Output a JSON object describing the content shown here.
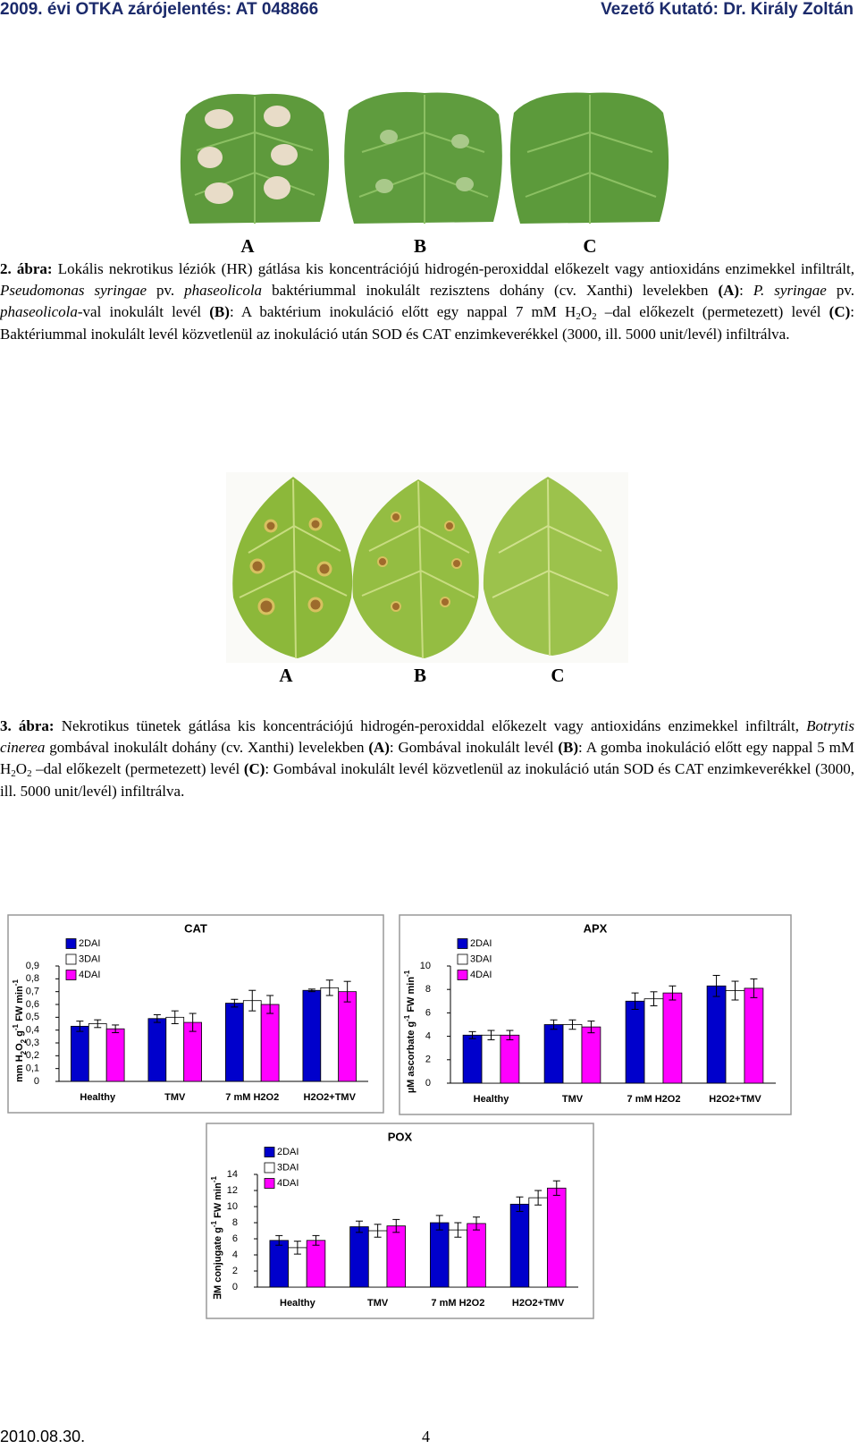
{
  "header": {
    "left": "2009. évi OTKA zárójelentés: AT 048866",
    "right": "Vezető Kutató: Dr. Király Zoltán"
  },
  "figure2": {
    "panels": [
      "A",
      "B",
      "C"
    ],
    "caption": [
      "2. ábra:",
      " Lokális nekrotikus léziók (HR) gátlása kis koncentrációjú hidrogén-peroxiddal előkezelt vagy antioxidáns enzimekkel infiltrált, ",
      "Pseudomonas syringae",
      " pv. ",
      "phaseolicola",
      " baktériummal inokulált rezisztens dohány (cv. Xanthi) levelekben ",
      "(A)",
      ": ",
      "P. syringae",
      " pv. ",
      "phaseolicola",
      "-val inokulált levél ",
      "(B)",
      ": A baktérium inokuláció előtt egy nappal 7 mM H",
      "2",
      "O",
      "2",
      " –dal előkezelt (permetezett) levél ",
      "(C)",
      ": Baktériummal inokulált levél közvetlenül az inokuláció után SOD és CAT enzimkeverékkel (3000, ill. 5000 unit/levél) infiltrálva."
    ]
  },
  "figure3": {
    "panels": [
      "A",
      "B",
      "C"
    ],
    "caption": [
      "3. ábra:",
      " Nekrotikus tünetek gátlása kis koncentrációjú hidrogén-peroxiddal előkezelt vagy antioxidáns enzimekkel infiltrált, ",
      "Botrytis cinerea",
      " gombával inokulált dohány (cv. Xanthi) levelekben ",
      "(A)",
      ": Gombával inokulált levél ",
      "(B)",
      ": A gomba inokuláció előtt egy nappal 5 mM H",
      "2",
      "O",
      "2",
      " –dal előkezelt (permetezett) levél ",
      "(C)",
      ": Gombával inokulált levél közvetlenül az inokuláció után SOD és CAT enzimkeverékkel (3000, ill. 5000 unit/levél) infiltrálva."
    ]
  },
  "chart_data": [
    {
      "type": "bar",
      "title": "CAT",
      "ylabel": [
        "mm H",
        "2",
        "O",
        "2",
        " g",
        "-1",
        " FW min",
        "-1"
      ],
      "categories": [
        "Healthy",
        "TMV",
        "7 mM H2O2",
        "H2O2+TMV"
      ],
      "series": [
        {
          "name": "2DAI",
          "color": "#0000cc",
          "values": [
            0.43,
            0.49,
            0.61,
            0.71
          ],
          "errors": [
            0.04,
            0.03,
            0.03,
            0.01
          ]
        },
        {
          "name": "3DAI",
          "color": "#ffffff",
          "values": [
            0.45,
            0.5,
            0.63,
            0.73
          ],
          "errors": [
            0.03,
            0.05,
            0.08,
            0.06
          ]
        },
        {
          "name": "4DAI",
          "color": "#ff00ff",
          "values": [
            0.41,
            0.46,
            0.6,
            0.7
          ],
          "errors": [
            0.03,
            0.07,
            0.07,
            0.08
          ]
        }
      ],
      "ylim": [
        0,
        0.9
      ],
      "yticks": [
        0,
        {
          "value": 0.1,
          "label": "0,1"
        },
        {
          "value": 0.2,
          "label": "0,2"
        },
        {
          "value": 0.3,
          "label": "0,3"
        },
        {
          "value": 0.4,
          "label": "0,4"
        },
        {
          "value": 0.5,
          "label": "0,5"
        },
        {
          "value": 0.6,
          "label": "0,6"
        },
        {
          "value": 0.7,
          "label": "0,7"
        },
        {
          "value": 0.8,
          "label": "0,8"
        },
        {
          "value": 0.9,
          "label": "0,9"
        }
      ]
    },
    {
      "type": "bar",
      "title": "APX",
      "ylabel": [
        "µM ascorbate g",
        "-1",
        " FW min",
        "-1"
      ],
      "categories": [
        "Healthy",
        "TMV",
        "7 mM H2O2",
        "H2O2+TMV"
      ],
      "series": [
        {
          "name": "2DAI",
          "color": "#0000cc",
          "values": [
            4.1,
            5.0,
            7.0,
            8.3
          ],
          "errors": [
            0.3,
            0.4,
            0.7,
            0.9
          ]
        },
        {
          "name": "3DAI",
          "color": "#ffffff",
          "values": [
            4.1,
            5.0,
            7.2,
            7.9
          ],
          "errors": [
            0.4,
            0.4,
            0.6,
            0.8
          ]
        },
        {
          "name": "4DAI",
          "color": "#ff00ff",
          "values": [
            4.1,
            4.8,
            7.7,
            8.1
          ],
          "errors": [
            0.4,
            0.5,
            0.6,
            0.8
          ]
        }
      ],
      "ylim": [
        0,
        10
      ],
      "yticks": [
        0,
        2,
        4,
        6,
        8,
        10
      ]
    },
    {
      "type": "bar",
      "title": "POX",
      "ylabel": [
        "∃M conjugate g",
        "-1",
        " FW min",
        "-1"
      ],
      "categories": [
        "Healthy",
        "TMV",
        "7 mM H2O2",
        "H2O2+TMV"
      ],
      "series": [
        {
          "name": "2DAI",
          "color": "#0000cc",
          "values": [
            5.8,
            7.5,
            8.0,
            10.3
          ],
          "errors": [
            0.6,
            0.7,
            0.9,
            0.9
          ]
        },
        {
          "name": "3DAI",
          "color": "#ffffff",
          "values": [
            4.9,
            7.0,
            7.1,
            11.1
          ],
          "errors": [
            0.8,
            0.8,
            0.9,
            0.9
          ]
        },
        {
          "name": "4DAI",
          "color": "#ff00ff",
          "values": [
            5.8,
            7.6,
            7.9,
            12.3
          ],
          "errors": [
            0.6,
            0.8,
            0.8,
            0.9
          ]
        }
      ],
      "ylim": [
        0,
        14
      ],
      "yticks": [
        0,
        2,
        4,
        6,
        8,
        10,
        12,
        14
      ]
    }
  ],
  "footer": {
    "date": "2010.08.30.",
    "page": "4"
  }
}
